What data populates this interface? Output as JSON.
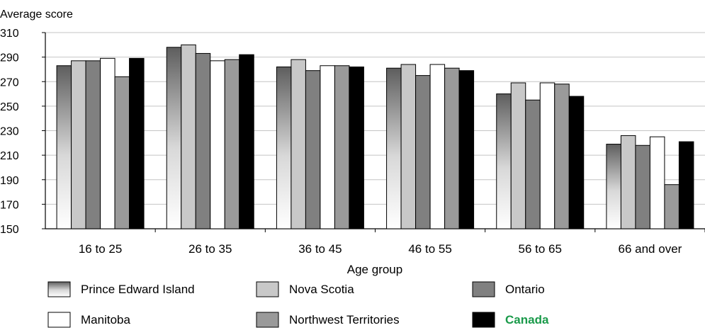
{
  "chart_data": {
    "type": "bar",
    "ylabel": "Average score",
    "xlabel": "Age group",
    "ylim": [
      150,
      310
    ],
    "yticks": [
      150,
      170,
      190,
      210,
      230,
      250,
      270,
      290,
      310
    ],
    "grid": true,
    "legend_position": "bottom",
    "categories": [
      "16 to 25",
      "26 to 35",
      "36 to 45",
      "46 to 55",
      "56 to 65",
      "66 and over"
    ],
    "series": [
      {
        "name": "Prince Edward Island",
        "values": [
          283,
          298,
          282,
          281,
          260,
          219
        ],
        "fill": "gradient"
      },
      {
        "name": "Nova Scotia",
        "values": [
          287,
          300,
          288,
          284,
          269,
          226
        ],
        "fill": "#c8c8c8"
      },
      {
        "name": "Ontario",
        "values": [
          287,
          293,
          279,
          275,
          255,
          218
        ],
        "fill": "#808080"
      },
      {
        "name": "Manitoba",
        "values": [
          289,
          287,
          283,
          284,
          269,
          225
        ],
        "fill": "#ffffff"
      },
      {
        "name": "Northwest Territories",
        "values": [
          274,
          288,
          283,
          281,
          268,
          186
        ],
        "fill": "#9a9a9a"
      },
      {
        "name": "Canada",
        "values": [
          289,
          292,
          282,
          279,
          258,
          221
        ],
        "fill": "#000000"
      }
    ],
    "legend_highlight": {
      "series": "Canada",
      "color": "#1a9a4a"
    }
  }
}
